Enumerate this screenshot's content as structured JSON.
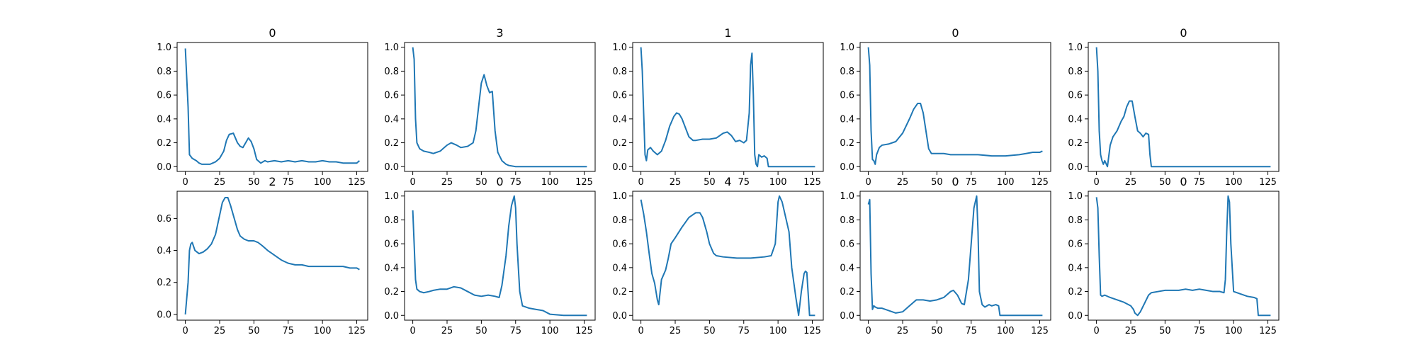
{
  "figure": {
    "line_color": "#1f77b4"
  },
  "chart_data": [
    {
      "type": "line",
      "title": "0",
      "xlim": [
        -6,
        133
      ],
      "ylim": [
        -0.04,
        1.04
      ],
      "xticks": [
        0,
        25,
        50,
        75,
        100,
        125
      ],
      "yticks": [
        0.0,
        0.2,
        0.4,
        0.6,
        0.8,
        1.0
      ],
      "xticklabels": [
        "0",
        "25",
        "50",
        "75",
        "100",
        "125"
      ],
      "yticklabels": [
        "0.0",
        "0.2",
        "0.4",
        "0.6",
        "0.8",
        "1.0"
      ],
      "series": [
        {
          "x": [
            0,
            2,
            3,
            5,
            8,
            10,
            12,
            15,
            18,
            20,
            22,
            25,
            28,
            30,
            32,
            35,
            38,
            40,
            42,
            44,
            46,
            48,
            50,
            52,
            55,
            58,
            60,
            65,
            70,
            75,
            80,
            85,
            90,
            95,
            100,
            105,
            110,
            115,
            120,
            125,
            127
          ],
          "y": [
            0.99,
            0.5,
            0.1,
            0.07,
            0.05,
            0.03,
            0.02,
            0.02,
            0.02,
            0.03,
            0.04,
            0.07,
            0.13,
            0.22,
            0.27,
            0.28,
            0.2,
            0.17,
            0.16,
            0.2,
            0.24,
            0.21,
            0.15,
            0.06,
            0.03,
            0.05,
            0.04,
            0.05,
            0.04,
            0.05,
            0.04,
            0.05,
            0.04,
            0.04,
            0.05,
            0.04,
            0.04,
            0.03,
            0.03,
            0.03,
            0.05
          ]
        }
      ]
    },
    {
      "type": "line",
      "title": "3",
      "xlim": [
        -6,
        133
      ],
      "ylim": [
        -0.04,
        1.04
      ],
      "xticks": [
        0,
        25,
        50,
        75,
        100,
        125
      ],
      "yticks": [
        0.0,
        0.2,
        0.4,
        0.6,
        0.8,
        1.0
      ],
      "xticklabels": [
        "0",
        "25",
        "50",
        "75",
        "100",
        "125"
      ],
      "yticklabels": [
        "0.0",
        "0.2",
        "0.4",
        "0.6",
        "0.8",
        "1.0"
      ],
      "series": [
        {
          "x": [
            0,
            1,
            2,
            3,
            5,
            8,
            12,
            15,
            20,
            25,
            28,
            32,
            35,
            40,
            44,
            46,
            48,
            50,
            52,
            54,
            56,
            58,
            60,
            62,
            65,
            68,
            70,
            75,
            80,
            90,
            100,
            110,
            120,
            127
          ],
          "y": [
            1.0,
            0.9,
            0.4,
            0.2,
            0.15,
            0.13,
            0.12,
            0.11,
            0.13,
            0.18,
            0.2,
            0.18,
            0.16,
            0.17,
            0.2,
            0.3,
            0.5,
            0.7,
            0.77,
            0.68,
            0.62,
            0.63,
            0.3,
            0.12,
            0.05,
            0.02,
            0.01,
            0.0,
            0.0,
            0.0,
            0.0,
            0.0,
            0.0,
            0.0
          ]
        }
      ]
    },
    {
      "type": "line",
      "title": "1",
      "xlim": [
        -6,
        133
      ],
      "ylim": [
        -0.04,
        1.04
      ],
      "xticks": [
        0,
        25,
        50,
        75,
        100,
        125
      ],
      "yticks": [
        0.0,
        0.2,
        0.4,
        0.6,
        0.8,
        1.0
      ],
      "xticklabels": [
        "0",
        "25",
        "50",
        "75",
        "100",
        "125"
      ],
      "yticklabels": [
        "0.0",
        "0.2",
        "0.4",
        "0.6",
        "0.8",
        "1.0"
      ],
      "series": [
        {
          "x": [
            0,
            1,
            2,
            3,
            4,
            5,
            7,
            9,
            12,
            15,
            18,
            21,
            24,
            26,
            28,
            30,
            32,
            35,
            38,
            40,
            45,
            50,
            55,
            60,
            63,
            66,
            69,
            72,
            75,
            77,
            79,
            80,
            81,
            82,
            83,
            84,
            85,
            86,
            88,
            90,
            92,
            93,
            95,
            100,
            110,
            120,
            127
          ],
          "y": [
            1.0,
            0.8,
            0.45,
            0.1,
            0.05,
            0.14,
            0.16,
            0.13,
            0.1,
            0.13,
            0.22,
            0.34,
            0.42,
            0.45,
            0.44,
            0.4,
            0.34,
            0.25,
            0.22,
            0.22,
            0.23,
            0.23,
            0.24,
            0.28,
            0.29,
            0.26,
            0.21,
            0.22,
            0.2,
            0.22,
            0.45,
            0.85,
            0.95,
            0.6,
            0.1,
            0.02,
            0.0,
            0.1,
            0.08,
            0.09,
            0.07,
            0.0,
            0.0,
            0.0,
            0.0,
            0.0,
            0.0
          ]
        }
      ]
    },
    {
      "type": "line",
      "title": "0",
      "xlim": [
        -6,
        133
      ],
      "ylim": [
        -0.04,
        1.04
      ],
      "xticks": [
        0,
        25,
        50,
        75,
        100,
        125
      ],
      "yticks": [
        0.0,
        0.2,
        0.4,
        0.6,
        0.8,
        1.0
      ],
      "xticklabels": [
        "0",
        "25",
        "50",
        "75",
        "100",
        "125"
      ],
      "yticklabels": [
        "0.0",
        "0.2",
        "0.4",
        "0.6",
        "0.8",
        "1.0"
      ],
      "series": [
        {
          "x": [
            0,
            1,
            2,
            3,
            4,
            5,
            6,
            8,
            10,
            15,
            20,
            25,
            30,
            33,
            36,
            38,
            40,
            42,
            44,
            46,
            48,
            50,
            55,
            60,
            70,
            80,
            90,
            100,
            110,
            115,
            120,
            125,
            127
          ],
          "y": [
            1.0,
            0.85,
            0.3,
            0.06,
            0.05,
            0.02,
            0.1,
            0.16,
            0.18,
            0.19,
            0.21,
            0.28,
            0.4,
            0.48,
            0.53,
            0.53,
            0.45,
            0.3,
            0.15,
            0.11,
            0.11,
            0.11,
            0.11,
            0.1,
            0.1,
            0.1,
            0.09,
            0.09,
            0.1,
            0.11,
            0.12,
            0.12,
            0.13
          ]
        }
      ]
    },
    {
      "type": "line",
      "title": "0",
      "xlim": [
        -6,
        133
      ],
      "ylim": [
        -0.04,
        1.04
      ],
      "xticks": [
        0,
        25,
        50,
        75,
        100,
        125
      ],
      "yticks": [
        0.0,
        0.2,
        0.4,
        0.6,
        0.8,
        1.0
      ],
      "xticklabels": [
        "0",
        "25",
        "50",
        "75",
        "100",
        "125"
      ],
      "yticklabels": [
        "0.0",
        "0.2",
        "0.4",
        "0.6",
        "0.8",
        "1.0"
      ],
      "series": [
        {
          "x": [
            0,
            1,
            2,
            3,
            4,
            5,
            6,
            8,
            10,
            12,
            15,
            18,
            20,
            22,
            24,
            26,
            28,
            30,
            32,
            34,
            36,
            38,
            39,
            40,
            50,
            60,
            70,
            80,
            90,
            100,
            110,
            120,
            127
          ],
          "y": [
            1.0,
            0.8,
            0.3,
            0.1,
            0.05,
            0.02,
            0.05,
            0.0,
            0.18,
            0.25,
            0.3,
            0.38,
            0.42,
            0.5,
            0.55,
            0.55,
            0.42,
            0.3,
            0.28,
            0.25,
            0.28,
            0.27,
            0.1,
            0.0,
            0.0,
            0.0,
            0.0,
            0.0,
            0.0,
            0.0,
            0.0,
            0.0,
            0.0
          ]
        }
      ]
    },
    {
      "type": "line",
      "title": "2",
      "xlim": [
        -6,
        133
      ],
      "ylim": [
        -0.036,
        0.77
      ],
      "xticks": [
        0,
        25,
        50,
        75,
        100,
        125
      ],
      "yticks": [
        0.0,
        0.2,
        0.4,
        0.6
      ],
      "xticklabels": [
        "0",
        "25",
        "50",
        "75",
        "100",
        "125"
      ],
      "yticklabels": [
        "0.0",
        "0.2",
        "0.4",
        "0.6"
      ],
      "series": [
        {
          "x": [
            0,
            2,
            3,
            4,
            5,
            7,
            10,
            13,
            16,
            19,
            22,
            25,
            27,
            29,
            31,
            33,
            35,
            38,
            40,
            43,
            46,
            50,
            53,
            56,
            60,
            65,
            70,
            75,
            80,
            85,
            90,
            95,
            100,
            105,
            110,
            115,
            120,
            125,
            127
          ],
          "y": [
            0.0,
            0.2,
            0.4,
            0.44,
            0.45,
            0.4,
            0.38,
            0.39,
            0.41,
            0.44,
            0.5,
            0.62,
            0.7,
            0.73,
            0.73,
            0.68,
            0.62,
            0.53,
            0.49,
            0.47,
            0.46,
            0.46,
            0.45,
            0.43,
            0.4,
            0.37,
            0.34,
            0.32,
            0.31,
            0.31,
            0.3,
            0.3,
            0.3,
            0.3,
            0.3,
            0.3,
            0.29,
            0.29,
            0.28
          ]
        }
      ]
    },
    {
      "type": "line",
      "title": "0",
      "xlim": [
        -6,
        133
      ],
      "ylim": [
        -0.04,
        1.04
      ],
      "xticks": [
        0,
        25,
        50,
        75,
        100,
        125
      ],
      "yticks": [
        0.0,
        0.2,
        0.4,
        0.6,
        0.8,
        1.0
      ],
      "xticklabels": [
        "0",
        "25",
        "50",
        "75",
        "100",
        "125"
      ],
      "yticklabels": [
        "0.0",
        "0.2",
        "0.4",
        "0.6",
        "0.8",
        "1.0"
      ],
      "series": [
        {
          "x": [
            0,
            1,
            2,
            3,
            5,
            8,
            12,
            15,
            20,
            25,
            30,
            35,
            40,
            45,
            50,
            55,
            60,
            63,
            65,
            68,
            70,
            72,
            74,
            75,
            76,
            78,
            80,
            85,
            90,
            95,
            100,
            110,
            120,
            127
          ],
          "y": [
            0.88,
            0.6,
            0.3,
            0.22,
            0.2,
            0.19,
            0.2,
            0.21,
            0.22,
            0.22,
            0.24,
            0.23,
            0.2,
            0.17,
            0.16,
            0.17,
            0.16,
            0.15,
            0.25,
            0.5,
            0.75,
            0.92,
            1.0,
            0.9,
            0.6,
            0.2,
            0.08,
            0.06,
            0.05,
            0.04,
            0.01,
            0.0,
            0.0,
            0.0
          ]
        }
      ]
    },
    {
      "type": "line",
      "title": "4",
      "xlim": [
        -6,
        133
      ],
      "ylim": [
        -0.04,
        1.04
      ],
      "xticks": [
        0,
        25,
        50,
        75,
        100,
        125
      ],
      "yticks": [
        0.0,
        0.2,
        0.4,
        0.6,
        0.8,
        1.0
      ],
      "xticklabels": [
        "0",
        "25",
        "50",
        "75",
        "100",
        "125"
      ],
      "yticklabels": [
        "0.0",
        "0.2",
        "0.4",
        "0.6",
        "0.8",
        "1.0"
      ],
      "series": [
        {
          "x": [
            0,
            2,
            4,
            6,
            8,
            10,
            12,
            13,
            15,
            18,
            20,
            22,
            25,
            30,
            35,
            40,
            43,
            45,
            48,
            50,
            53,
            55,
            60,
            70,
            80,
            90,
            95,
            98,
            100,
            101,
            103,
            105,
            108,
            110,
            113,
            115,
            117,
            119,
            120,
            121,
            123,
            127
          ],
          "y": [
            0.97,
            0.85,
            0.7,
            0.52,
            0.35,
            0.27,
            0.13,
            0.09,
            0.3,
            0.38,
            0.48,
            0.6,
            0.65,
            0.74,
            0.82,
            0.86,
            0.86,
            0.82,
            0.7,
            0.6,
            0.52,
            0.5,
            0.49,
            0.48,
            0.48,
            0.49,
            0.5,
            0.6,
            0.95,
            1.0,
            0.95,
            0.85,
            0.7,
            0.4,
            0.15,
            0.0,
            0.2,
            0.35,
            0.37,
            0.36,
            0.0,
            0.0
          ]
        }
      ]
    },
    {
      "type": "line",
      "title": "0",
      "xlim": [
        -6,
        133
      ],
      "ylim": [
        -0.04,
        1.04
      ],
      "xticks": [
        0,
        25,
        50,
        75,
        100,
        125
      ],
      "yticks": [
        0.0,
        0.2,
        0.4,
        0.6,
        0.8,
        1.0
      ],
      "xticklabels": [
        "0",
        "25",
        "50",
        "75",
        "100",
        "125"
      ],
      "yticklabels": [
        "0.0",
        "0.2",
        "0.4",
        "0.6",
        "0.8",
        "1.0"
      ],
      "series": [
        {
          "x": [
            0,
            1,
            2,
            3,
            4,
            5,
            7,
            10,
            15,
            20,
            25,
            30,
            35,
            40,
            45,
            50,
            55,
            60,
            62,
            65,
            68,
            70,
            73,
            75,
            77,
            79,
            80,
            81,
            83,
            85,
            88,
            90,
            93,
            95,
            96,
            100,
            110,
            120,
            127
          ],
          "y": [
            0.93,
            0.97,
            0.35,
            0.05,
            0.08,
            0.07,
            0.06,
            0.06,
            0.04,
            0.02,
            0.03,
            0.08,
            0.13,
            0.13,
            0.12,
            0.13,
            0.15,
            0.2,
            0.21,
            0.17,
            0.1,
            0.09,
            0.3,
            0.6,
            0.9,
            1.0,
            0.7,
            0.2,
            0.09,
            0.07,
            0.09,
            0.08,
            0.09,
            0.08,
            0.0,
            0.0,
            0.0,
            0.0,
            0.0
          ]
        }
      ]
    },
    {
      "type": "line",
      "title": "0",
      "xlim": [
        -6,
        133
      ],
      "ylim": [
        -0.04,
        1.04
      ],
      "xticks": [
        0,
        25,
        50,
        75,
        100,
        125
      ],
      "yticks": [
        0.0,
        0.2,
        0.4,
        0.6,
        0.8,
        1.0
      ],
      "xticklabels": [
        "0",
        "25",
        "50",
        "75",
        "100",
        "125"
      ],
      "yticklabels": [
        "0.0",
        "0.2",
        "0.4",
        "0.6",
        "0.8",
        "1.0"
      ],
      "series": [
        {
          "x": [
            0,
            1,
            2,
            3,
            4,
            6,
            10,
            15,
            20,
            25,
            27,
            28,
            30,
            32,
            35,
            38,
            40,
            45,
            50,
            55,
            60,
            65,
            70,
            75,
            80,
            85,
            90,
            93,
            94,
            95,
            96,
            97,
            98,
            100,
            105,
            110,
            115,
            117,
            118,
            120,
            127
          ],
          "y": [
            0.99,
            0.9,
            0.5,
            0.17,
            0.16,
            0.17,
            0.15,
            0.13,
            0.11,
            0.08,
            0.05,
            0.02,
            0.0,
            0.03,
            0.1,
            0.17,
            0.19,
            0.2,
            0.21,
            0.21,
            0.21,
            0.22,
            0.21,
            0.22,
            0.21,
            0.2,
            0.2,
            0.19,
            0.3,
            0.7,
            1.0,
            0.95,
            0.6,
            0.2,
            0.18,
            0.16,
            0.15,
            0.14,
            0.0,
            0.0,
            0.0
          ]
        }
      ]
    }
  ]
}
